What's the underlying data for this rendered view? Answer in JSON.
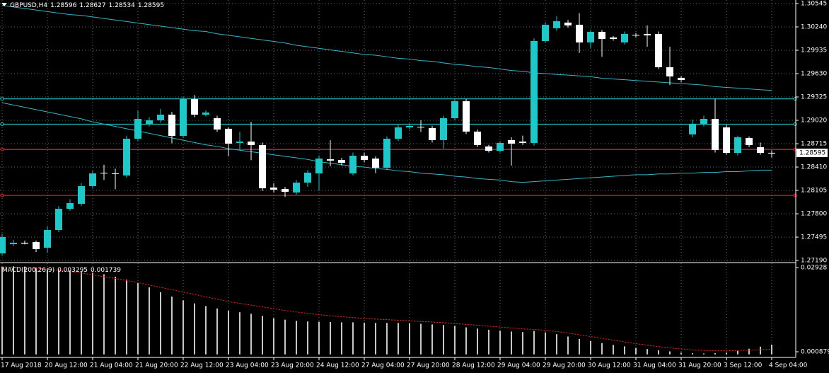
{
  "chart_data": [
    {
      "type": "candlestick",
      "symbol": "GBPUSD,H4",
      "categories": [
        "17 Aug 2018",
        null,
        null,
        null,
        "20 Aug 12:00",
        null,
        null,
        null,
        "21 Aug 04:00",
        null,
        null,
        null,
        "21 Aug 20:00",
        null,
        null,
        null,
        "22 Aug 12:00",
        null,
        null,
        null,
        "23 Aug 04:00",
        null,
        null,
        null,
        "23 Aug 20:00",
        null,
        null,
        null,
        "24 Aug 12:00",
        null,
        null,
        null,
        "27 Aug 04:00",
        null,
        null,
        null,
        "27 Aug 20:00",
        null,
        null,
        null,
        "28 Aug 12:00",
        null,
        null,
        null,
        "29 Aug 04:00",
        null,
        null,
        null,
        "29 Aug 20:00",
        null,
        null,
        null,
        "30 Aug 12:00",
        null,
        null,
        null,
        "31 Aug 04:00",
        null,
        null,
        null,
        "31 Aug 20:00",
        null,
        null,
        null,
        "3 Sep 12:00",
        null,
        null,
        null,
        "4 Sep 04:00"
      ],
      "candles": {
        "open": [
          1.27283,
          1.27403,
          1.27422,
          1.27431,
          1.27357,
          1.27588,
          1.27865,
          1.2793,
          1.28161,
          1.28335,
          1.28327,
          1.283,
          1.2878,
          1.28974,
          1.2902,
          1.29094,
          1.28817,
          1.29298,
          1.29094,
          1.29048,
          1.2891,
          1.28725,
          1.28743,
          1.28697,
          1.28143,
          1.28124,
          1.28078,
          1.28207,
          1.28327,
          1.28512,
          1.28503,
          1.28327,
          1.28558,
          1.28521,
          1.28401,
          1.2878,
          1.28928,
          1.28935,
          1.28919,
          1.28762,
          1.29048,
          1.2927,
          1.28873,
          1.28679,
          1.28623,
          1.28762,
          1.28743,
          1.28725,
          1.30055,
          1.30222,
          1.30296,
          1.30268,
          1.30037,
          1.30175,
          1.30102,
          1.30037,
          1.30135,
          1.30148,
          1.30148,
          1.29713,
          1.29575,
          1.28836,
          1.28965,
          1.29039,
          1.28928,
          1.28595,
          1.28789,
          1.28669,
          1.28596
        ],
        "high": [
          1.2754,
          1.2746,
          1.2745,
          1.2745,
          1.2764,
          1.279,
          1.2799,
          1.282,
          1.2836,
          1.2844,
          1.2839,
          1.2882,
          1.2915,
          1.2906,
          1.2917,
          1.2913,
          1.2933,
          1.2935,
          1.2915,
          1.2908,
          1.2893,
          1.2887,
          1.29,
          1.2873,
          1.282,
          1.2815,
          1.2824,
          1.2837,
          1.2856,
          1.2876,
          1.2853,
          1.286,
          1.286,
          1.2855,
          1.2881,
          1.2896,
          1.2898,
          1.2902,
          1.2895,
          1.2908,
          1.293,
          1.293,
          1.289,
          1.287,
          1.2875,
          1.288,
          1.2882,
          1.3009,
          1.303,
          1.3038,
          1.3033,
          1.3042,
          1.302,
          1.302,
          1.3012,
          1.3018,
          1.3016,
          1.3026,
          1.3018,
          1.2998,
          1.296,
          1.2903,
          1.2908,
          1.293,
          1.2896,
          1.2882,
          1.2881,
          1.2873,
          1.28627
        ],
        "low": [
          1.2725,
          1.2738,
          1.274,
          1.273,
          1.2729,
          1.2756,
          1.2784,
          1.279,
          1.2813,
          1.2824,
          1.2812,
          1.2827,
          1.2875,
          1.2894,
          1.2899,
          1.2872,
          1.2879,
          1.2906,
          1.2907,
          1.2887,
          1.2855,
          1.2864,
          1.285,
          1.281,
          1.2808,
          1.2802,
          1.2805,
          1.2815,
          1.281,
          1.2842,
          1.2843,
          1.283,
          1.2847,
          1.2833,
          1.2837,
          1.2875,
          1.289,
          1.2887,
          1.2873,
          1.2865,
          1.2902,
          1.2884,
          1.2867,
          1.286,
          1.286,
          1.2843,
          1.287,
          1.2869,
          1.3003,
          1.3019,
          1.3023,
          1.299,
          1.2996,
          1.2985,
          1.3006,
          1.3001,
          1.301,
          1.2998,
          1.2969,
          1.2948,
          1.2952,
          1.288,
          1.2894,
          1.286,
          1.2857,
          1.2856,
          1.2867,
          1.2857,
          1.28534
        ],
        "close": [
          1.27496,
          1.27422,
          1.2741,
          1.27339,
          1.27588,
          1.27865,
          1.27939,
          1.28161,
          1.28327,
          1.28327,
          1.2832,
          1.2878,
          1.29039,
          1.2902,
          1.29094,
          1.28817,
          1.29298,
          1.29094,
          1.29122,
          1.289,
          1.28716,
          1.28743,
          1.28697,
          1.28133,
          1.28115,
          1.28087,
          1.28207,
          1.28337,
          1.28521,
          1.28494,
          1.28466,
          1.28558,
          1.28503,
          1.28401,
          1.2878,
          1.28928,
          1.28947,
          1.28928,
          1.28762,
          1.29048,
          1.2927,
          1.28873,
          1.28697,
          1.28623,
          1.28725,
          1.28716,
          1.28725,
          1.30055,
          1.30268,
          1.30314,
          1.30259,
          1.30037,
          1.30175,
          1.30083,
          1.30083,
          1.30148,
          1.30129,
          1.30129,
          1.29713,
          1.29593,
          1.29547,
          1.28974,
          1.29039,
          1.28632,
          1.28595,
          1.28799,
          1.28697,
          1.28595,
          1.28595
        ]
      },
      "bull_color": "#1fc8c8",
      "bear_color": "#ffffff",
      "lines": [
        {
          "color": "#36b4c0",
          "values": [
            1.3052,
            1.305,
            1.3048,
            1.3046,
            1.3044,
            1.3042,
            1.304,
            1.3039,
            1.3037,
            1.3035,
            1.3033,
            1.3031,
            1.3029,
            1.3027,
            1.3025,
            1.3023,
            1.3021,
            1.3019,
            1.3018,
            1.3015,
            1.3013,
            1.3011,
            1.3009,
            1.3007,
            1.3005,
            1.3003,
            1.3,
            1.2998,
            1.2996,
            1.2994,
            1.2992,
            1.299,
            1.2988,
            1.2987,
            1.2985,
            1.2983,
            1.2982,
            1.298,
            1.2979,
            1.2977,
            1.2975,
            1.2974,
            1.2972,
            1.2971,
            1.2969,
            1.2967,
            1.2966,
            1.2964,
            1.2963,
            1.2962,
            1.2961,
            1.296,
            1.2959,
            1.2957,
            1.2956,
            1.2955,
            1.2954,
            1.2953,
            1.2952,
            1.2951,
            1.295,
            1.2949,
            1.2948,
            1.2946,
            1.2945,
            1.2944,
            1.2943,
            1.2942,
            1.2941
          ]
        },
        {
          "color": "#36b4c0",
          "values": [
            1.2925,
            1.2922,
            1.2919,
            1.2916,
            1.2913,
            1.291,
            1.2907,
            1.2904,
            1.29,
            1.2897,
            1.2894,
            1.2891,
            1.2888,
            1.2885,
            1.2882,
            1.2879,
            1.2876,
            1.2873,
            1.287,
            1.2868,
            1.2865,
            1.2863,
            1.2861,
            1.2859,
            1.2857,
            1.2855,
            1.2853,
            1.2851,
            1.2848,
            1.2846,
            1.2844,
            1.2842,
            1.2841,
            1.2839,
            1.2838,
            1.2836,
            1.2835,
            1.2833,
            1.2832,
            1.2831,
            1.2829,
            1.2828,
            1.2826,
            1.2825,
            1.2824,
            1.2822,
            1.2821,
            1.2822,
            1.2823,
            1.2824,
            1.2825,
            1.2826,
            1.2827,
            1.2828,
            1.2829,
            1.283,
            1.2831,
            1.2831,
            1.2832,
            1.2832,
            1.2833,
            1.2833,
            1.2834,
            1.2834,
            1.2835,
            1.2835,
            1.2836,
            1.2837,
            1.2837
          ]
        }
      ],
      "hlines": [
        {
          "value": 1.293,
          "color": "#1fc8c8"
        },
        {
          "value": 1.2897,
          "color": "#1fc8c8"
        },
        {
          "value": 1.2864,
          "color": "#ff2020"
        },
        {
          "value": 1.2804,
          "color": "#ff2020"
        }
      ],
      "ylim": [
        1.27172,
        1.30591
      ],
      "yticks": [
        1.30545,
        {
          "value": 1.3024,
          "label": "1.30240"
        },
        1.29935,
        {
          "value": 1.2963,
          "label": "1.29630"
        },
        1.29325,
        {
          "value": 1.2902,
          "label": "1.29020"
        },
        1.28715,
        {
          "value": 1.2841,
          "label": "1.28410"
        },
        1.28105,
        {
          "value": 1.278,
          "label": "1.27800"
        },
        1.27495,
        {
          "value": 1.2719,
          "label": "1.27190"
        }
      ],
      "grid": true
    },
    {
      "type": "macd",
      "title": "MACD(200,26,9)",
      "histogram": {
        "color": "#c8c8c8",
        "values": [
          0.0296,
          0.0297,
          0.0296,
          0.0293,
          0.029,
          0.0287,
          0.0283,
          0.0279,
          0.0275,
          0.027,
          0.0262,
          0.0252,
          0.024,
          0.0226,
          0.021,
          0.0195,
          0.0182,
          0.0172,
          0.0163,
          0.0155,
          0.0148,
          0.0142,
          0.0137,
          0.013,
          0.0122,
          0.0117,
          0.0113,
          0.0111,
          0.011,
          0.0109,
          0.0108,
          0.0108,
          0.0107,
          0.0106,
          0.0106,
          0.0106,
          0.0105,
          0.0103,
          0.0101,
          0.0099,
          0.0096,
          0.0091,
          0.0087,
          0.0083,
          0.008,
          0.0077,
          0.0075,
          0.0079,
          0.0074,
          0.0068,
          0.006,
          0.0052,
          0.0045,
          0.0038,
          0.0032,
          0.0027,
          0.0022,
          0.0018,
          0.0014,
          0.001,
          0.0006,
          0.0004,
          0.0003,
          0.0004,
          0.0006,
          0.0012,
          0.0019,
          0.0026,
          0.003295
        ]
      },
      "signal": {
        "color": "#ff2020",
        "values": [
          0.0295,
          0.0294,
          0.0292,
          0.029,
          0.0287,
          0.0283,
          0.0279,
          0.0274,
          0.0268,
          0.0262,
          0.0256,
          0.0249,
          0.0242,
          0.0234,
          0.0226,
          0.0218,
          0.021,
          0.0202,
          0.0194,
          0.0186,
          0.0178,
          0.0172,
          0.0166,
          0.016,
          0.0154,
          0.0148,
          0.0143,
          0.0138,
          0.0134,
          0.013,
          0.0127,
          0.0124,
          0.0121,
          0.0119,
          0.0117,
          0.0115,
          0.0113,
          0.0111,
          0.0109,
          0.0107,
          0.0104,
          0.0101,
          0.0098,
          0.0095,
          0.0092,
          0.0089,
          0.0086,
          0.0084,
          0.0081,
          0.0077,
          0.0072,
          0.0066,
          0.006,
          0.0054,
          0.0048,
          0.0042,
          0.0036,
          0.0031,
          0.0026,
          0.0022,
          0.0018,
          0.0015,
          0.0013,
          0.0012,
          0.0012,
          0.0013,
          0.0014,
          0.0016,
          0.001739
        ]
      },
      "y2lim": [
        -0.00103,
        0.03071
      ],
      "y2ticks": [
        0.02928,
        0.000879
      ]
    }
  ]
}
